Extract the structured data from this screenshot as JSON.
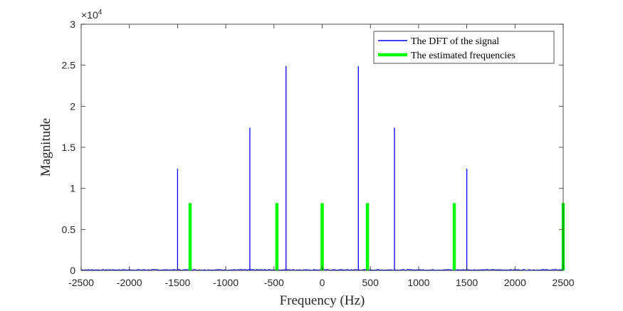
{
  "chart_data": {
    "type": "line",
    "title": "",
    "xlabel": "Frequency (Hz)",
    "ylabel": "Magnitude",
    "y_exponent_label": "×10",
    "y_exponent_power": "4",
    "xlim": [
      -2500,
      2500
    ],
    "ylim": [
      0,
      3
    ],
    "x_ticks": [
      -2500,
      -2000,
      -1500,
      -1000,
      -500,
      0,
      500,
      1000,
      1500,
      2000,
      2500
    ],
    "x_tick_labels": [
      "-2500",
      "-2000",
      "-1500",
      "-1000",
      "-500",
      "0",
      "500",
      "1000",
      "1500",
      "2000",
      "2500"
    ],
    "y_ticks": [
      0,
      0.5,
      1,
      1.5,
      2,
      2.5,
      3
    ],
    "y_tick_labels": [
      "0",
      "0.5",
      "1",
      "1.5",
      "2",
      "2.5",
      "3"
    ],
    "grid": false,
    "legend_position": "top-right",
    "series": [
      {
        "name": "The DFT of the signal",
        "color": "#0000ff",
        "style": "thin-line",
        "peaks": [
          {
            "x": -1500,
            "y": 1.24
          },
          {
            "x": -750,
            "y": 1.74
          },
          {
            "x": -375,
            "y": 2.49
          },
          {
            "x": 375,
            "y": 2.49
          },
          {
            "x": 750,
            "y": 1.74
          },
          {
            "x": 1500,
            "y": 1.24
          }
        ],
        "baseline": 0.01
      },
      {
        "name": "The estimated frequencies",
        "color": "#00ff00",
        "style": "thick-stem",
        "points": [
          {
            "x": -1370,
            "y": 0.82
          },
          {
            "x": -470,
            "y": 0.82
          },
          {
            "x": 0,
            "y": 0.82
          },
          {
            "x": 470,
            "y": 0.82
          },
          {
            "x": 1370,
            "y": 0.82
          },
          {
            "x": 2500,
            "y": 0.82
          }
        ]
      }
    ]
  }
}
